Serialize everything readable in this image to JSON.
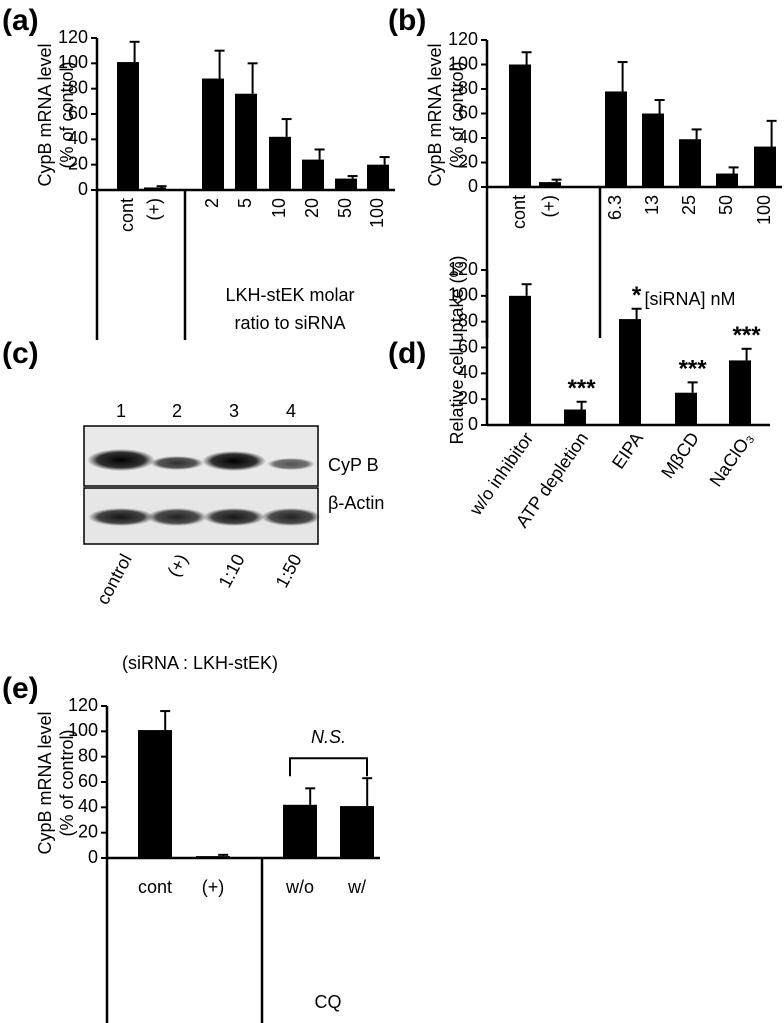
{
  "panels": [
    "(a)",
    "(b)",
    "(c)",
    "(d)",
    "(e)"
  ],
  "chart_data": [
    {
      "type": "bar",
      "ylabel": [
        "CypB mRNA level",
        "(% of control)"
      ],
      "categories": [
        "cont",
        "(+)",
        "2",
        "5",
        "10",
        "20",
        "50",
        "100"
      ],
      "values": [
        101,
        2,
        88,
        76,
        42,
        24,
        9,
        20
      ],
      "errors": [
        16,
        1,
        22,
        24,
        14,
        8,
        2,
        6
      ],
      "group_label": [
        "LKH-stEK molar",
        "ratio to siRNA"
      ],
      "color": "#000000",
      "ylim": [
        0,
        120
      ],
      "yticks": [
        0,
        20,
        40,
        60,
        80,
        100,
        120
      ]
    },
    {
      "type": "bar",
      "ylabel": [
        "CypB mRNA level",
        "(% of control)"
      ],
      "categories": [
        "cont",
        "(+)",
        "6.3",
        "13",
        "25",
        "50",
        "100"
      ],
      "values": [
        100,
        4,
        78,
        60,
        39,
        11,
        33
      ],
      "errors": [
        10,
        2,
        24,
        11,
        8,
        5,
        21
      ],
      "group_label": [
        "[siRNA] nM"
      ],
      "color": "#000000",
      "ylim": [
        0,
        120
      ],
      "yticks": [
        0,
        20,
        40,
        60,
        80,
        100,
        120
      ]
    },
    {
      "type": "bar",
      "ylabel": [
        "Relative cell uptake (%)"
      ],
      "categories": [
        "w/o inhibitor",
        "ATP depletion",
        "EIPA",
        "MβCD",
        "NaClO₃"
      ],
      "values": [
        100,
        12,
        82,
        25,
        50
      ],
      "errors": [
        9,
        6,
        8,
        8,
        9
      ],
      "annotations": [
        {
          "category": "ATP depletion",
          "text": "***"
        },
        {
          "category": "EIPA",
          "text": "*"
        },
        {
          "category": "MβCD",
          "text": "***"
        },
        {
          "category": "NaClO₃",
          "text": "***"
        }
      ],
      "color": "#000000",
      "ylim": [
        0,
        120
      ],
      "yticks": [
        0,
        20,
        40,
        60,
        80,
        100,
        120
      ]
    },
    {
      "type": "bar",
      "ylabel": [
        "CypB mRNA level",
        "(% of control)"
      ],
      "categories": [
        "cont",
        "(+)",
        "w/o",
        "w/"
      ],
      "values": [
        101,
        1.5,
        42,
        41
      ],
      "errors": [
        15,
        1,
        13,
        22
      ],
      "group_label": [
        "CQ"
      ],
      "bracket": {
        "text": "N.S.",
        "from": "w/o",
        "to": "w/"
      },
      "color": "#000000",
      "ylim": [
        0,
        120
      ],
      "yticks": [
        0,
        20,
        40,
        60,
        80,
        100,
        120
      ]
    }
  ],
  "blot": {
    "lanes": [
      "1",
      "2",
      "3",
      "4"
    ],
    "bands": [
      "CyP B",
      "β-Actin"
    ],
    "conditions": [
      "control",
      "(+)",
      "1:10",
      "1:50"
    ],
    "caption": "(siRNA : LKH-stEK)"
  }
}
